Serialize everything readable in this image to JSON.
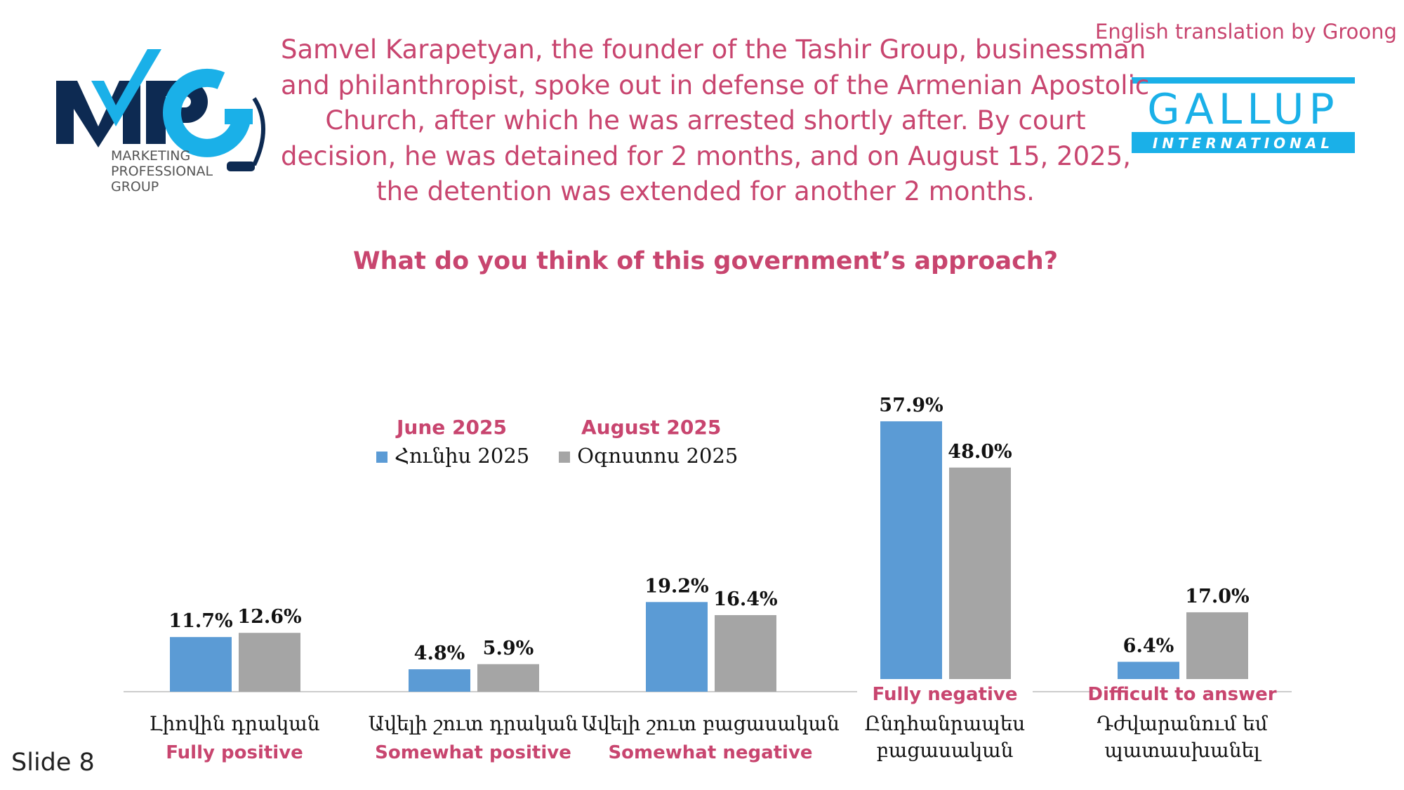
{
  "credit": "English translation by Groong",
  "logos": {
    "mpg": {
      "letters": "MPG",
      "line1": "MARKETING",
      "line2": "PROFESSIONAL",
      "line3": "GROUP"
    },
    "gallup": {
      "name": "GALLUP",
      "sub": "INTERNATIONAL"
    }
  },
  "intro_lines": [
    "Samvel Karapetyan, the founder of the Tashir Group, businessman",
    "and philanthropist, spoke out in defense of the Armenian Apostolic",
    "Church, after which he was arrested shortly after. By court",
    "decision, he was detained for 2 months, and on August 15, 2025,",
    "the detention was extended for another 2 months."
  ],
  "question": "What do you think of this government’s approach?",
  "slide_label": "Slide 8",
  "colors": {
    "june": "#5b9bd5",
    "august": "#a5a5a5",
    "accent": "#c8456f",
    "mpg_navy": "#0d2a52",
    "mpg_cyan": "#1ab0e8"
  },
  "chart_data": {
    "type": "bar",
    "categories": [
      {
        "hy": [
          "Լիովին դրական"
        ],
        "en": "Fully positive"
      },
      {
        "hy": [
          "Ավելի շուտ դրական"
        ],
        "en": "Somewhat positive"
      },
      {
        "hy": [
          "Ավելի շուտ բացասական"
        ],
        "en": "Somewhat negative"
      },
      {
        "hy": [
          "Ընդհանրապես",
          "բացասական"
        ],
        "en": "Fully negative"
      },
      {
        "hy": [
          "Դժվարանում եմ",
          "պատասխանել"
        ],
        "en": "Difficult to answer"
      }
    ],
    "series": [
      {
        "name": "Հունիս 2025",
        "name_en": "June 2025",
        "values": [
          11.7,
          4.8,
          19.2,
          57.9,
          6.4
        ],
        "labels": [
          "11.7%",
          "4.8%",
          "19.2%",
          "57.9%",
          "6.4%"
        ]
      },
      {
        "name": "Օգոստոս 2025",
        "name_en": "August 2025",
        "values": [
          12.6,
          5.9,
          16.4,
          48.0,
          17.0
        ],
        "labels": [
          "12.6%",
          "5.9%",
          "16.4%",
          "48.0%",
          "17.0%"
        ]
      }
    ],
    "unit": "%",
    "ylim": [
      0,
      60
    ],
    "grid": false,
    "legend": "top-left",
    "xlabel": "",
    "ylabel": ""
  }
}
